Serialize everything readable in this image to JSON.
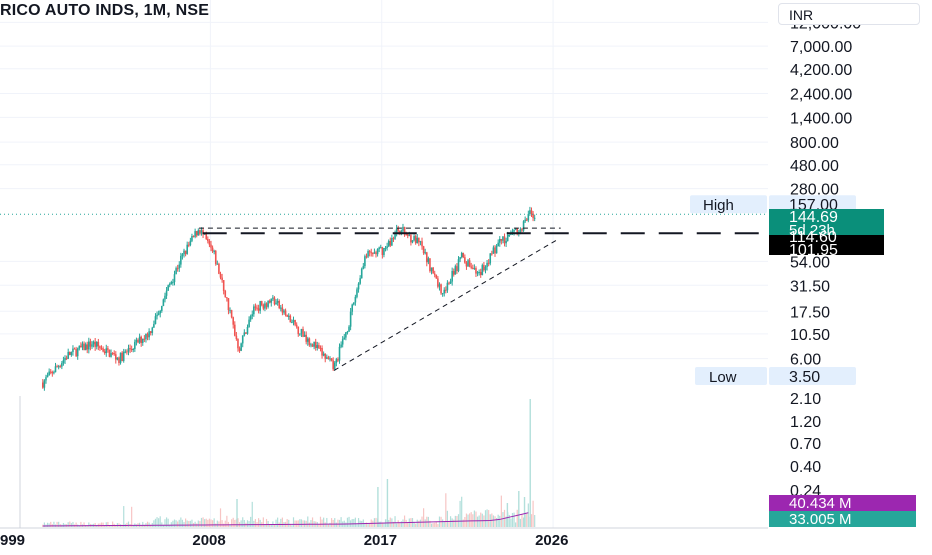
{
  "header": {
    "title": "RICO AUTO INDS, 1M, NSE",
    "currency": "INR"
  },
  "colors": {
    "up": "#26a69a",
    "down": "#ef5350",
    "volume_up": "#b2dfdb",
    "volume_down": "#f7c5c4",
    "volume_ma": "#9c27b0",
    "grid": "#f0f3fa",
    "axis_text": "#131722"
  },
  "chart_data": {
    "type": "candlestick",
    "title": "RICO AUTO INDS, 1M, NSE",
    "price_scale": "log",
    "price_ticks": [
      "12,000.00",
      "7,000.00",
      "4,200.00",
      "2,400.00",
      "1,400.00",
      "800.00",
      "480.00",
      "280.00",
      "54.00",
      "31.50",
      "17.50",
      "10.50",
      "6.00"
    ],
    "price_range": [
      3.2,
      12000
    ],
    "x_ticks": [
      "999",
      "2008",
      "2017",
      "2026"
    ],
    "x_range_years": [
      1999,
      2026
    ],
    "price_anchors": [
      {
        "year": 1999.2,
        "price": 3.5
      },
      {
        "year": 2000.5,
        "price": 6.5
      },
      {
        "year": 2001.8,
        "price": 8.5
      },
      {
        "year": 2003.2,
        "price": 6.0
      },
      {
        "year": 2004.8,
        "price": 11.0
      },
      {
        "year": 2006.4,
        "price": 55.0
      },
      {
        "year": 2007.4,
        "price": 114.6
      },
      {
        "year": 2008.2,
        "price": 62.0
      },
      {
        "year": 2008.8,
        "price": 25.0
      },
      {
        "year": 2009.5,
        "price": 7.5
      },
      {
        "year": 2010.3,
        "price": 19.0
      },
      {
        "year": 2011.3,
        "price": 23.0
      },
      {
        "year": 2012.2,
        "price": 14.0
      },
      {
        "year": 2013.5,
        "price": 8.0
      },
      {
        "year": 2014.5,
        "price": 4.9
      },
      {
        "year": 2015.3,
        "price": 14.0
      },
      {
        "year": 2016.1,
        "price": 60.0
      },
      {
        "year": 2017.2,
        "price": 72.0
      },
      {
        "year": 2017.9,
        "price": 114.6
      },
      {
        "year": 2019.0,
        "price": 80.0
      },
      {
        "year": 2020.2,
        "price": 26.0
      },
      {
        "year": 2021.2,
        "price": 60.0
      },
      {
        "year": 2022.1,
        "price": 40.0
      },
      {
        "year": 2023.2,
        "price": 85.0
      },
      {
        "year": 2024.3,
        "price": 114.6
      },
      {
        "year": 2024.8,
        "price": 157.0
      },
      {
        "year": 2025.1,
        "price": 144.69
      }
    ],
    "annotations": {
      "high_label": "High",
      "high_value": "157.00",
      "last_price": "144.69",
      "countdown": "5d 23h",
      "resistance": "114.60",
      "ma_value": "101.95",
      "low_label": "Low",
      "low_value": "3.50"
    },
    "volume_ticks": [
      "2.10",
      "1.20",
      "0.70",
      "0.40",
      "0.24"
    ],
    "volume_ma_label": "40.434 M",
    "volume_label": "33.005 M",
    "trendlines": [
      {
        "style": "dashed",
        "from": {
          "year": 2007.4,
          "price": 114.6
        },
        "to": {
          "year": 2026.4,
          "price": 114.6
        }
      },
      {
        "style": "dashed",
        "from": {
          "year": 2014.5,
          "price": 4.6
        },
        "to": {
          "year": 2026.3,
          "price": 90.0
        }
      }
    ],
    "grid": true,
    "legend": "none"
  }
}
